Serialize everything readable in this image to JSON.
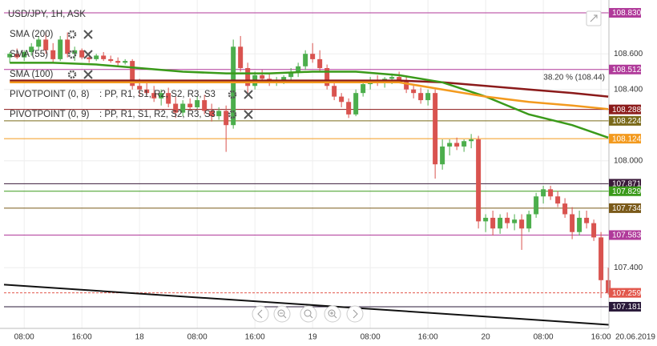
{
  "chart_data": {
    "type": "candlestick",
    "title": "USD/JPY, 1H, ASK",
    "up_color": "#4cae4c",
    "down_color": "#d9534f",
    "xlim": [
      5.2,
      89.1
    ],
    "ylim": [
      107.082,
      108.902
    ],
    "xticks": [
      {
        "value": 8,
        "label": "08:00"
      },
      {
        "value": 16,
        "label": "16:00"
      },
      {
        "value": 24,
        "label": "18"
      },
      {
        "value": 32,
        "label": "08:00"
      },
      {
        "value": 40,
        "label": "16:00"
      },
      {
        "value": 48,
        "label": "19"
      },
      {
        "value": 56,
        "label": "08:00"
      },
      {
        "value": 64,
        "label": "16:00"
      },
      {
        "value": 72,
        "label": "20"
      },
      {
        "value": 80,
        "label": "08:00"
      },
      {
        "value": 88,
        "label": "16:00"
      }
    ],
    "cursor_date": "20.06.2019",
    "yticks": [
      {
        "value": 108.6,
        "label": "108.600"
      },
      {
        "value": 108.4,
        "label": "108.400"
      },
      {
        "value": 108.0,
        "label": "108.000"
      },
      {
        "value": 107.4,
        "label": "107.400"
      }
    ],
    "x": [
      6,
      7,
      8,
      9,
      10,
      11,
      12,
      13,
      14,
      15,
      16,
      17,
      18,
      19,
      20,
      21,
      22,
      23,
      24,
      25,
      26,
      27,
      28,
      29,
      30,
      31,
      32,
      33,
      34,
      35,
      36,
      37,
      38,
      39,
      40,
      41,
      42,
      43,
      44,
      45,
      46,
      47,
      48,
      49,
      50,
      51,
      52,
      53,
      54,
      55,
      56,
      57,
      58,
      59,
      60,
      61,
      62,
      63,
      64,
      65,
      66,
      67,
      68,
      69,
      70,
      71,
      72,
      73,
      74,
      75,
      76,
      77,
      78,
      79,
      80,
      81,
      82,
      83,
      84,
      85,
      86,
      87,
      88,
      89
    ],
    "ohlc": [
      [
        108.58,
        108.61,
        108.55,
        108.6
      ],
      [
        108.6,
        108.63,
        108.57,
        108.58
      ],
      [
        108.58,
        108.62,
        108.56,
        108.61
      ],
      [
        108.61,
        108.66,
        108.59,
        108.64
      ],
      [
        108.64,
        108.7,
        108.62,
        108.68
      ],
      [
        108.68,
        108.72,
        108.6,
        108.62
      ],
      [
        108.62,
        108.66,
        108.55,
        108.57
      ],
      [
        108.57,
        108.7,
        108.56,
        108.68
      ],
      [
        108.68,
        108.72,
        108.58,
        108.6
      ],
      [
        108.6,
        108.64,
        108.56,
        108.62
      ],
      [
        108.62,
        108.63,
        108.57,
        108.58
      ],
      [
        108.58,
        108.61,
        108.55,
        108.57
      ],
      [
        108.57,
        108.6,
        108.56,
        108.59
      ],
      [
        108.59,
        108.61,
        108.56,
        108.57
      ],
      [
        108.57,
        108.59,
        108.55,
        108.56
      ],
      [
        108.56,
        108.58,
        108.53,
        108.55
      ],
      [
        108.55,
        108.57,
        108.54,
        108.56
      ],
      [
        108.56,
        108.57,
        108.4,
        108.42
      ],
      [
        108.42,
        108.46,
        108.36,
        108.4
      ],
      [
        108.4,
        108.44,
        108.37,
        108.38
      ],
      [
        108.38,
        108.42,
        108.33,
        108.35
      ],
      [
        108.35,
        108.4,
        108.31,
        108.38
      ],
      [
        108.38,
        108.41,
        108.3,
        108.32
      ],
      [
        108.32,
        108.36,
        108.24,
        108.27
      ],
      [
        108.27,
        108.34,
        108.25,
        108.32
      ],
      [
        108.32,
        108.35,
        108.28,
        108.3
      ],
      [
        108.3,
        108.36,
        108.29,
        108.34
      ],
      [
        108.34,
        108.37,
        108.26,
        108.28
      ],
      [
        108.28,
        108.32,
        108.22,
        108.25
      ],
      [
        108.25,
        108.3,
        108.23,
        108.28
      ],
      [
        108.28,
        108.31,
        108.05,
        108.2
      ],
      [
        108.2,
        108.68,
        108.18,
        108.64
      ],
      [
        108.64,
        108.7,
        108.5,
        108.52
      ],
      [
        108.52,
        108.55,
        108.38,
        108.42
      ],
      [
        108.42,
        108.5,
        108.4,
        108.48
      ],
      [
        108.48,
        108.51,
        108.44,
        108.46
      ],
      [
        108.46,
        108.49,
        108.42,
        108.44
      ],
      [
        108.44,
        108.47,
        108.42,
        108.45
      ],
      [
        108.45,
        108.48,
        108.43,
        108.47
      ],
      [
        108.47,
        108.52,
        108.45,
        108.5
      ],
      [
        108.5,
        108.55,
        108.47,
        108.53
      ],
      [
        108.53,
        108.62,
        108.51,
        108.6
      ],
      [
        108.6,
        108.66,
        108.55,
        108.57
      ],
      [
        108.57,
        108.62,
        108.5,
        108.52
      ],
      [
        108.52,
        108.54,
        108.4,
        108.42
      ],
      [
        108.42,
        108.45,
        108.34,
        108.36
      ],
      [
        108.36,
        108.38,
        108.3,
        108.33
      ],
      [
        108.33,
        108.35,
        108.24,
        108.26
      ],
      [
        108.26,
        108.4,
        108.25,
        108.38
      ],
      [
        108.38,
        108.45,
        108.36,
        108.43
      ],
      [
        108.43,
        108.47,
        108.4,
        108.45
      ],
      [
        108.45,
        108.48,
        108.42,
        108.44
      ],
      [
        108.44,
        108.47,
        108.41,
        108.46
      ],
      [
        108.46,
        108.49,
        108.43,
        108.47
      ],
      [
        108.47,
        108.5,
        108.44,
        108.45
      ],
      [
        108.45,
        108.47,
        108.38,
        108.4
      ],
      [
        108.4,
        108.43,
        108.35,
        108.38
      ],
      [
        108.38,
        108.41,
        108.32,
        108.34
      ],
      [
        108.34,
        108.4,
        108.31,
        108.38
      ],
      [
        108.38,
        108.4,
        107.9,
        107.98
      ],
      [
        107.98,
        108.12,
        107.95,
        108.08
      ],
      [
        108.08,
        108.12,
        108.03,
        108.1
      ],
      [
        108.1,
        108.13,
        108.06,
        108.08
      ],
      [
        108.08,
        108.12,
        108.05,
        108.11
      ],
      [
        108.11,
        108.15,
        108.07,
        108.12
      ],
      [
        108.12,
        108.14,
        107.62,
        107.66
      ],
      [
        107.66,
        107.7,
        107.6,
        107.68
      ],
      [
        107.68,
        107.72,
        107.58,
        107.62
      ],
      [
        107.62,
        107.7,
        107.59,
        107.68
      ],
      [
        107.68,
        107.71,
        107.62,
        107.65
      ],
      [
        107.65,
        107.7,
        107.61,
        107.67
      ],
      [
        107.67,
        107.7,
        107.5,
        107.62
      ],
      [
        107.62,
        107.72,
        107.6,
        107.7
      ],
      [
        107.7,
        107.82,
        107.68,
        107.8
      ],
      [
        107.8,
        107.86,
        107.76,
        107.84
      ],
      [
        107.84,
        107.86,
        107.78,
        107.8
      ],
      [
        107.8,
        107.83,
        107.74,
        107.76
      ],
      [
        107.76,
        107.79,
        107.68,
        107.7
      ],
      [
        107.7,
        107.74,
        107.56,
        107.6
      ],
      [
        107.6,
        107.72,
        107.58,
        107.68
      ],
      [
        107.68,
        107.72,
        107.62,
        107.65
      ],
      [
        107.65,
        107.67,
        107.55,
        107.57
      ],
      [
        107.57,
        107.6,
        107.23,
        107.33
      ],
      [
        107.33,
        107.4,
        107.25,
        107.259
      ]
    ],
    "series": [
      {
        "name": "SMA (200)",
        "color": "#8b1a1a",
        "x": [
          6,
          12,
          18,
          24,
          30,
          36,
          42,
          48,
          54,
          60,
          66,
          72,
          78,
          84,
          89
        ],
        "values": [
          108.45,
          108.45,
          108.45,
          108.45,
          108.45,
          108.45,
          108.45,
          108.45,
          108.45,
          108.45,
          108.44,
          108.42,
          108.4,
          108.38,
          108.36
        ]
      },
      {
        "name": "SMA (55)",
        "color": "#3a9a1a",
        "x": [
          6,
          12,
          18,
          24,
          30,
          36,
          42,
          48,
          54,
          60,
          66,
          72,
          78,
          84,
          89
        ],
        "values": [
          108.55,
          108.55,
          108.54,
          108.52,
          108.5,
          108.49,
          108.49,
          108.5,
          108.5,
          108.48,
          108.44,
          108.36,
          108.26,
          108.2,
          108.13
        ]
      },
      {
        "name": "SMA (100)",
        "color": "#f39a1e",
        "x": [
          6,
          12,
          18,
          24,
          30,
          36,
          42,
          48,
          54,
          60,
          66,
          72,
          78,
          84,
          89
        ],
        "values": [
          108.44,
          108.44,
          108.44,
          108.44,
          108.44,
          108.44,
          108.44,
          108.44,
          108.44,
          108.44,
          108.4,
          108.36,
          108.33,
          108.31,
          108.29
        ]
      }
    ],
    "trendline": {
      "color": "#111111",
      "x": [
        5.2,
        89.1
      ],
      "values": [
        107.305,
        107.08
      ]
    },
    "pivot_legend": [
      {
        "name": "PIVOTPOINT (0, 8)",
        "levels": ": PP, R1, S1, R2, S2, R3, S3"
      },
      {
        "name": "PIVOTPOINT (0, 9)",
        "levels": ": PP, R1, S1, R2, S2, R3, S3"
      }
    ],
    "fib_label": "38.20 % (108.44)",
    "levels": [
      {
        "value": 108.83,
        "label": "108.830",
        "color": "#b03a9a"
      },
      {
        "value": 108.512,
        "label": "108.512",
        "color": "#b03a9a"
      },
      {
        "value": 108.288,
        "label": "108.288",
        "color": "#8b1a1a"
      },
      {
        "value": 108.224,
        "label": "108.224",
        "color": "#7a6a1a"
      },
      {
        "value": 108.124,
        "label": "108.124",
        "color": "#f39a1e"
      },
      {
        "value": 107.871,
        "label": "107.871",
        "color": "#3a1a3a"
      },
      {
        "value": 107.829,
        "label": "107.829",
        "color": "#3a9a1a"
      },
      {
        "value": 107.734,
        "label": "107.734",
        "color": "#7a5a1a"
      },
      {
        "value": 107.583,
        "label": "107.583",
        "color": "#b03a9a"
      },
      {
        "value": 107.259,
        "label": "107.259",
        "color": "#e2574c"
      },
      {
        "value": 107.181,
        "label": "107.181",
        "color": "#2a1a3a"
      }
    ]
  }
}
